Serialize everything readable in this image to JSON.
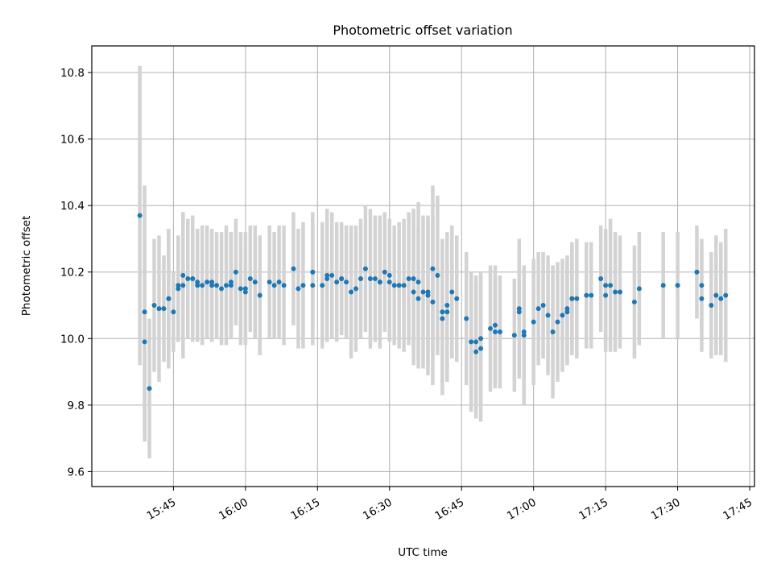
{
  "chart_data": {
    "type": "scatter",
    "title": "Photometric offset variation",
    "xlabel": "UTC time",
    "ylabel": "Photometric offset",
    "xlim": [
      "15:28",
      "17:46"
    ],
    "ylim": [
      9.555,
      10.88
    ],
    "x_ticks": [
      "15:45",
      "16:00",
      "16:15",
      "16:30",
      "16:45",
      "17:00",
      "17:15",
      "17:30",
      "17:45"
    ],
    "y_ticks": [
      "9.6",
      "9.8",
      "10.0",
      "10.2",
      "10.4",
      "10.6",
      "10.8"
    ],
    "grid": true,
    "colors": {
      "points": "#1f77b4",
      "error_bars": "#d3d3d3",
      "grid": "#b0b0b0"
    },
    "series": [
      {
        "x": [
          "15:38",
          "15:39",
          "15:39",
          "15:40",
          "15:41",
          "15:42",
          "15:43",
          "15:44",
          "15:44",
          "15:45",
          "15:46",
          "15:46",
          "15:47",
          "15:47",
          "15:48",
          "15:49",
          "15:49",
          "15:50",
          "15:50",
          "15:51",
          "15:52",
          "15:53",
          "15:53",
          "15:54",
          "15:55",
          "15:56",
          "15:57",
          "15:57",
          "15:58",
          "15:59",
          "16:00",
          "16:00",
          "16:01",
          "16:02",
          "16:03",
          "16:05",
          "16:06",
          "16:07",
          "16:08",
          "16:10",
          "16:11",
          "16:12",
          "16:14",
          "16:14",
          "16:16",
          "16:17",
          "16:17",
          "16:18",
          "16:19",
          "16:20",
          "16:20",
          "16:21",
          "16:22",
          "16:23",
          "16:24",
          "16:25",
          "16:26",
          "16:27",
          "16:28",
          "16:28",
          "16:29",
          "16:30",
          "16:30",
          "16:31",
          "16:32",
          "16:33",
          "16:34",
          "16:35",
          "16:35",
          "16:36",
          "16:36",
          "16:37",
          "16:38",
          "16:38",
          "16:39",
          "16:39",
          "16:40",
          "16:41",
          "16:41",
          "16:42",
          "16:42",
          "16:43",
          "16:44",
          "16:46",
          "16:47",
          "16:48",
          "16:48",
          "16:49",
          "16:49",
          "16:51",
          "16:52",
          "16:52",
          "16:53",
          "16:56",
          "16:57",
          "16:57",
          "16:58",
          "16:58",
          "17:00",
          "17:01",
          "17:02",
          "17:03",
          "17:04",
          "17:05",
          "17:06",
          "17:07",
          "17:07",
          "17:08",
          "17:08",
          "17:09",
          "17:11",
          "17:12",
          "17:14",
          "17:15",
          "17:15",
          "17:16",
          "17:17",
          "17:18",
          "17:21",
          "17:22",
          "17:27",
          "17:30",
          "17:34",
          "17:35",
          "17:35",
          "17:37",
          "17:38",
          "17:39",
          "17:40"
        ],
        "y": [
          10.37,
          10.08,
          9.99,
          9.85,
          10.1,
          10.09,
          10.09,
          10.12,
          10.12,
          10.08,
          10.15,
          10.16,
          10.19,
          10.16,
          10.18,
          10.18,
          10.18,
          10.16,
          10.17,
          10.16,
          10.17,
          10.17,
          10.16,
          10.16,
          10.15,
          10.16,
          10.17,
          10.16,
          10.2,
          10.15,
          10.14,
          10.15,
          10.18,
          10.17,
          10.13,
          10.17,
          10.16,
          10.17,
          10.16,
          10.21,
          10.15,
          10.16,
          10.2,
          10.16,
          10.16,
          10.18,
          10.19,
          10.19,
          10.17,
          10.18,
          10.18,
          10.17,
          10.14,
          10.15,
          10.18,
          10.21,
          10.18,
          10.18,
          10.17,
          10.17,
          10.2,
          10.19,
          10.17,
          10.16,
          10.16,
          10.16,
          10.18,
          10.18,
          10.14,
          10.12,
          10.17,
          10.14,
          10.14,
          10.13,
          10.11,
          10.21,
          10.19,
          10.06,
          10.08,
          10.08,
          10.1,
          10.14,
          10.12,
          10.06,
          9.99,
          9.99,
          9.96,
          9.97,
          10,
          10.03,
          10.04,
          10.02,
          10.02,
          10.01,
          10.09,
          10.08,
          10.02,
          10.01,
          10.05,
          10.09,
          10.1,
          10.07,
          10.02,
          10.05,
          10.07,
          10.09,
          10.08,
          10.12,
          10.12,
          10.12,
          10.13,
          10.13,
          10.18,
          10.13,
          10.16,
          10.16,
          10.14,
          10.14,
          10.11,
          10.15,
          10.16,
          10.16,
          10.2,
          10.16,
          10.12,
          10.1,
          10.13,
          10.12,
          10.13
        ],
        "yerr": [
          0.45,
          0.38,
          0.3,
          0.21,
          0.2,
          0.22,
          0.16,
          0.2,
          0.21,
          0.12,
          0.16,
          0.15,
          0.19,
          0.22,
          0.18,
          0.17,
          0.19,
          0.17,
          0.16,
          0.18,
          0.17,
          0.16,
          0.17,
          0.16,
          0.17,
          0.18,
          0.15,
          0.16,
          0.16,
          0.17,
          0.15,
          0.17,
          0.16,
          0.17,
          0.18,
          0.17,
          0.16,
          0.17,
          0.18,
          0.17,
          0.18,
          0.19,
          0.18,
          0.18,
          0.19,
          0.18,
          0.2,
          0.19,
          0.18,
          0.17,
          0.16,
          0.17,
          0.2,
          0.19,
          0.18,
          0.19,
          0.21,
          0.19,
          0.2,
          0.19,
          0.18,
          0.17,
          0.18,
          0.18,
          0.19,
          0.2,
          0.2,
          0.21,
          0.22,
          0.21,
          0.24,
          0.23,
          0.22,
          0.24,
          0.25,
          0.25,
          0.24,
          0.23,
          0.22,
          0.21,
          0.22,
          0.2,
          0.19,
          0.2,
          0.21,
          0.2,
          0.2,
          0.22,
          0.2,
          0.19,
          0.18,
          0.17,
          0.17,
          0.17,
          0.21,
          0.2,
          0.2,
          0.21,
          0.19,
          0.17,
          0.16,
          0.18,
          0.2,
          0.18,
          0.17,
          0.16,
          0.16,
          0.16,
          0.17,
          0.18,
          0.16,
          0.16,
          0.16,
          0.17,
          0.17,
          0.2,
          0.18,
          0.17,
          0.17,
          0.17,
          0.16,
          0.16,
          0.14,
          0.14,
          0.16,
          0.16,
          0.18,
          0.17,
          0.2
        ]
      }
    ]
  }
}
